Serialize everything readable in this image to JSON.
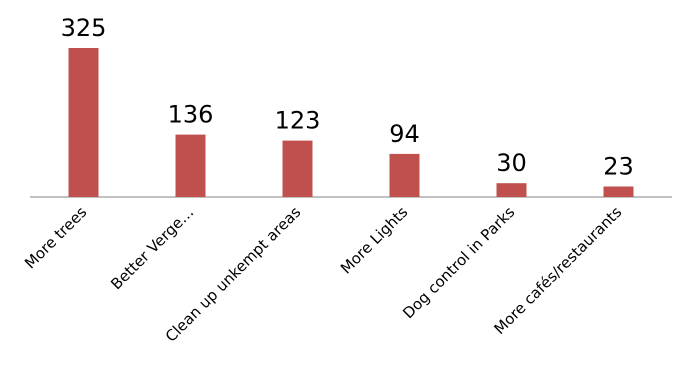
{
  "chart_data": {
    "type": "bar",
    "title": "",
    "xlabel": "",
    "ylabel": "",
    "categories": [
      "More trees",
      "Better Verge…",
      "Clean up unkempt areas",
      "More Lights",
      "Dog control in Parks",
      "More cafés/restaurants"
    ],
    "values": [
      325,
      136,
      123,
      94,
      30,
      23
    ],
    "ylim": [
      0,
      325
    ],
    "grid": false,
    "legend": "none",
    "colors": {
      "bar": "#c0504d",
      "axis": "#868686"
    }
  }
}
